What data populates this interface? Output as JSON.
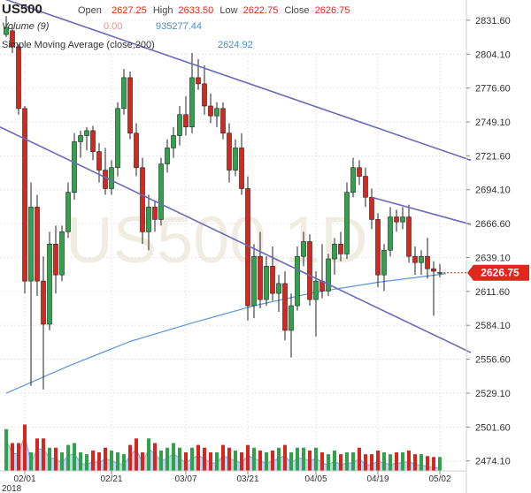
{
  "header": {
    "symbol": "US500",
    "open_label": "Open",
    "open": "2627.25",
    "high_label": "High",
    "high": "2633.50",
    "low_label": "Low",
    "low": "2622.75",
    "close_label": "Close",
    "close": "2626.75",
    "volume_label": "Volume (9)",
    "volume_change": "0.00",
    "volume_value": "935277.44",
    "sma_label": "Simple Moving Average (close,200)",
    "sma_value": "2624.92"
  },
  "watermark": "US500,1D",
  "colors": {
    "up": "#2fa24a",
    "down": "#d7261e",
    "channel": "#6a6ab8",
    "sma": "#5b95d9",
    "volume_area": "#a9c4ec",
    "price_tag": "#e0271c"
  },
  "chart_data": {
    "type": "candlestick",
    "title": "US500",
    "ylim": [
      2466,
      2848
    ],
    "y_ticks": [
      2831.6,
      2804.1,
      2776.6,
      2749.1,
      2721.6,
      2694.1,
      2666.6,
      2639.1,
      2611.6,
      2584.1,
      2556.6,
      2529.1,
      2501.6,
      2474.1
    ],
    "y_tick_labels": [
      "2831.60",
      "2804.10",
      "2776.60",
      "2749.10",
      "2721.60",
      "2694.10",
      "2666.60",
      "2639.10",
      "2611.60",
      "2584.10",
      "2556.60",
      "2529.10",
      "2501.60",
      "2474.10"
    ],
    "x_tick_labels": [
      {
        "index": 3,
        "label": "02/01"
      },
      {
        "index": 17,
        "label": "02/21"
      },
      {
        "index": 29,
        "label": "03/07"
      },
      {
        "index": 39,
        "label": "03/21"
      },
      {
        "index": 50,
        "label": "04/05"
      },
      {
        "index": 60,
        "label": "04/19"
      },
      {
        "index": 70,
        "label": "05/02"
      }
    ],
    "x_extra_label": "2018",
    "last_price": "2626.75",
    "candles": [
      {
        "o": 2820,
        "h": 2835,
        "l": 2818,
        "c": 2826
      },
      {
        "o": 2823,
        "h": 2828,
        "l": 2805,
        "c": 2810
      },
      {
        "o": 2810,
        "h": 2812,
        "l": 2755,
        "c": 2760
      },
      {
        "o": 2760,
        "h": 2762,
        "l": 2610,
        "c": 2620
      },
      {
        "o": 2620,
        "h": 2700,
        "l": 2535,
        "c": 2680
      },
      {
        "o": 2680,
        "h": 2690,
        "l": 2608,
        "c": 2620
      },
      {
        "o": 2620,
        "h": 2640,
        "l": 2532,
        "c": 2585
      },
      {
        "o": 2585,
        "h": 2660,
        "l": 2580,
        "c": 2650
      },
      {
        "o": 2650,
        "h": 2665,
        "l": 2610,
        "c": 2625
      },
      {
        "o": 2625,
        "h": 2665,
        "l": 2620,
        "c": 2660
      },
      {
        "o": 2660,
        "h": 2700,
        "l": 2655,
        "c": 2692
      },
      {
        "o": 2692,
        "h": 2740,
        "l": 2686,
        "c": 2733
      },
      {
        "o": 2733,
        "h": 2742,
        "l": 2720,
        "c": 2738
      },
      {
        "o": 2738,
        "h": 2745,
        "l": 2726,
        "c": 2742
      },
      {
        "o": 2742,
        "h": 2746,
        "l": 2718,
        "c": 2725
      },
      {
        "o": 2725,
        "h": 2732,
        "l": 2700,
        "c": 2710
      },
      {
        "o": 2710,
        "h": 2728,
        "l": 2690,
        "c": 2695
      },
      {
        "o": 2695,
        "h": 2718,
        "l": 2690,
        "c": 2712
      },
      {
        "o": 2712,
        "h": 2765,
        "l": 2705,
        "c": 2760
      },
      {
        "o": 2760,
        "h": 2792,
        "l": 2755,
        "c": 2785
      },
      {
        "o": 2785,
        "h": 2790,
        "l": 2735,
        "c": 2740
      },
      {
        "o": 2740,
        "h": 2748,
        "l": 2705,
        "c": 2712
      },
      {
        "o": 2712,
        "h": 2720,
        "l": 2650,
        "c": 2660
      },
      {
        "o": 2660,
        "h": 2690,
        "l": 2645,
        "c": 2680
      },
      {
        "o": 2680,
        "h": 2685,
        "l": 2660,
        "c": 2670
      },
      {
        "o": 2670,
        "h": 2720,
        "l": 2665,
        "c": 2715
      },
      {
        "o": 2715,
        "h": 2735,
        "l": 2708,
        "c": 2728
      },
      {
        "o": 2728,
        "h": 2745,
        "l": 2720,
        "c": 2738
      },
      {
        "o": 2738,
        "h": 2762,
        "l": 2730,
        "c": 2755
      },
      {
        "o": 2755,
        "h": 2770,
        "l": 2738,
        "c": 2745
      },
      {
        "o": 2745,
        "h": 2805,
        "l": 2740,
        "c": 2785
      },
      {
        "o": 2785,
        "h": 2800,
        "l": 2775,
        "c": 2780
      },
      {
        "o": 2780,
        "h": 2795,
        "l": 2755,
        "c": 2762
      },
      {
        "o": 2762,
        "h": 2772,
        "l": 2748,
        "c": 2754
      },
      {
        "o": 2754,
        "h": 2765,
        "l": 2745,
        "c": 2760
      },
      {
        "o": 2760,
        "h": 2765,
        "l": 2735,
        "c": 2740
      },
      {
        "o": 2740,
        "h": 2748,
        "l": 2700,
        "c": 2710
      },
      {
        "o": 2710,
        "h": 2735,
        "l": 2705,
        "c": 2728
      },
      {
        "o": 2728,
        "h": 2740,
        "l": 2690,
        "c": 2695
      },
      {
        "o": 2695,
        "h": 2705,
        "l": 2588,
        "c": 2600
      },
      {
        "o": 2600,
        "h": 2650,
        "l": 2590,
        "c": 2640
      },
      {
        "o": 2640,
        "h": 2660,
        "l": 2598,
        "c": 2605
      },
      {
        "o": 2605,
        "h": 2640,
        "l": 2600,
        "c": 2632
      },
      {
        "o": 2632,
        "h": 2648,
        "l": 2604,
        "c": 2610
      },
      {
        "o": 2610,
        "h": 2625,
        "l": 2595,
        "c": 2618
      },
      {
        "o": 2618,
        "h": 2628,
        "l": 2572,
        "c": 2580
      },
      {
        "o": 2580,
        "h": 2610,
        "l": 2558,
        "c": 2600
      },
      {
        "o": 2600,
        "h": 2648,
        "l": 2596,
        "c": 2640
      },
      {
        "o": 2640,
        "h": 2660,
        "l": 2632,
        "c": 2652
      },
      {
        "o": 2652,
        "h": 2658,
        "l": 2600,
        "c": 2605
      },
      {
        "o": 2605,
        "h": 2628,
        "l": 2575,
        "c": 2620
      },
      {
        "o": 2620,
        "h": 2650,
        "l": 2606,
        "c": 2612
      },
      {
        "o": 2612,
        "h": 2642,
        "l": 2608,
        "c": 2638
      },
      {
        "o": 2638,
        "h": 2655,
        "l": 2625,
        "c": 2650
      },
      {
        "o": 2650,
        "h": 2660,
        "l": 2636,
        "c": 2642
      },
      {
        "o": 2642,
        "h": 2700,
        "l": 2638,
        "c": 2692
      },
      {
        "o": 2692,
        "h": 2720,
        "l": 2688,
        "c": 2712
      },
      {
        "o": 2712,
        "h": 2718,
        "l": 2698,
        "c": 2705
      },
      {
        "o": 2705,
        "h": 2712,
        "l": 2680,
        "c": 2688
      },
      {
        "o": 2688,
        "h": 2695,
        "l": 2662,
        "c": 2670
      },
      {
        "o": 2670,
        "h": 2675,
        "l": 2615,
        "c": 2625
      },
      {
        "o": 2625,
        "h": 2650,
        "l": 2612,
        "c": 2645
      },
      {
        "o": 2645,
        "h": 2680,
        "l": 2640,
        "c": 2672
      },
      {
        "o": 2672,
        "h": 2678,
        "l": 2660,
        "c": 2668
      },
      {
        "o": 2668,
        "h": 2680,
        "l": 2662,
        "c": 2672
      },
      {
        "o": 2672,
        "h": 2682,
        "l": 2635,
        "c": 2640
      },
      {
        "o": 2640,
        "h": 2648,
        "l": 2625,
        "c": 2635
      },
      {
        "o": 2635,
        "h": 2645,
        "l": 2625,
        "c": 2640
      },
      {
        "o": 2640,
        "h": 2655,
        "l": 2622,
        "c": 2630
      },
      {
        "o": 2630,
        "h": 2636,
        "l": 2592,
        "c": 2628
      },
      {
        "o": 2627,
        "h": 2634,
        "l": 2623,
        "c": 2627
      }
    ],
    "volume": [
      45,
      30,
      30,
      50,
      20,
      35,
      35,
      25,
      25,
      20,
      28,
      30,
      20,
      18,
      22,
      20,
      25,
      22,
      20,
      18,
      28,
      35,
      20,
      35,
      30,
      22,
      25,
      30,
      25,
      20,
      25,
      28,
      25,
      20,
      20,
      28,
      25,
      22,
      20,
      28,
      25,
      22,
      20,
      22,
      25,
      28,
      20,
      25,
      25,
      22,
      25,
      20,
      18,
      22,
      18,
      20,
      20,
      25,
      18,
      18,
      22,
      20,
      18,
      20,
      20,
      22,
      18,
      18,
      16,
      15,
      15
    ],
    "sma200_line": [
      [
        0,
        2529
      ],
      [
        10,
        2551
      ],
      [
        20,
        2571
      ],
      [
        30,
        2586
      ],
      [
        40,
        2600
      ],
      [
        50,
        2611
      ],
      [
        60,
        2619
      ],
      [
        71,
        2626
      ]
    ],
    "channel_lines": [
      [
        [
          -1,
          2850
        ],
        [
          75,
          2718
        ]
      ],
      [
        [
          -1,
          2745
        ],
        [
          75,
          2562
        ]
      ],
      [
        [
          59,
          2688
        ],
        [
          75,
          2666
        ]
      ]
    ]
  }
}
